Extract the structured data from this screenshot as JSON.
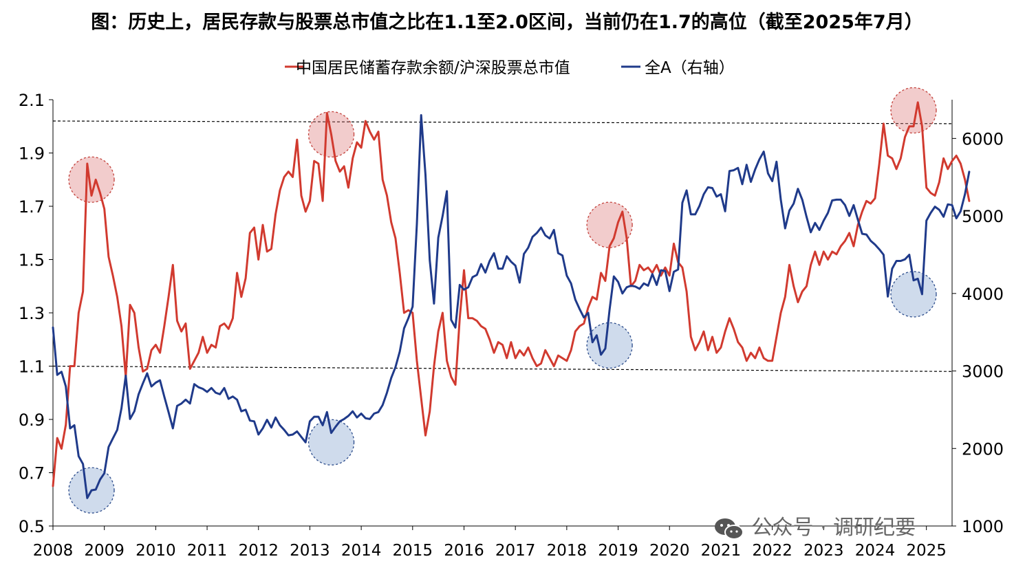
{
  "title": "图：历史上，居民存款与股票总市值之比在1.1至2.0区间，当前仍在1.7的高位（截至2025年7月）",
  "watermark": "公众号 · 调研纪要",
  "chart_data": {
    "type": "line",
    "title": "图：历史上，居民存款与股票总市值之比在1.1至2.0区间，当前仍在1.7的高位（截至2025年7月）",
    "x_start": "2008-01",
    "x_end": "2025-07",
    "frequency": "monthly",
    "x_tick_labels": [
      "2008",
      "2009",
      "2010",
      "2011",
      "2012",
      "2013",
      "2014",
      "2015",
      "2016",
      "2017",
      "2018",
      "2019",
      "2020",
      "2021",
      "2022",
      "2023",
      "2024",
      "2025"
    ],
    "left_axis": {
      "range": [
        0.5,
        2.1
      ],
      "ticks": [
        "0.5",
        "0.7",
        "0.9",
        "1.1",
        "1.3",
        "1.5",
        "1.7",
        "1.9",
        "2.1"
      ]
    },
    "right_axis": {
      "range": [
        1000,
        6500
      ],
      "ticks": [
        "1000",
        "2000",
        "3000",
        "4000",
        "5000",
        "6000"
      ]
    },
    "legend_position": "top-center",
    "reference_lines": [
      {
        "axis": "left",
        "style": "dashed",
        "values": [
          2.02,
          2.01
        ]
      },
      {
        "axis": "left",
        "style": "dashed",
        "values": [
          1.1,
          1.08
        ]
      }
    ],
    "series": [
      {
        "name": "中国居民储蓄存款余额/沪深股票总市值",
        "axis": "left",
        "color": "#d13a2f",
        "values": [
          0.65,
          0.83,
          0.79,
          0.88,
          1.1,
          1.1,
          1.3,
          1.38,
          1.86,
          1.74,
          1.8,
          1.75,
          1.69,
          1.51,
          1.44,
          1.36,
          1.25,
          1.06,
          1.33,
          1.3,
          1.17,
          1.08,
          1.09,
          1.16,
          1.18,
          1.15,
          1.25,
          1.36,
          1.48,
          1.27,
          1.23,
          1.26,
          1.09,
          1.12,
          1.15,
          1.21,
          1.15,
          1.18,
          1.17,
          1.25,
          1.26,
          1.24,
          1.28,
          1.45,
          1.36,
          1.43,
          1.6,
          1.62,
          1.5,
          1.63,
          1.53,
          1.54,
          1.67,
          1.76,
          1.81,
          1.83,
          1.81,
          1.95,
          1.74,
          1.68,
          1.72,
          1.87,
          1.86,
          1.72,
          2.05,
          1.97,
          1.87,
          1.83,
          1.85,
          1.77,
          1.88,
          1.94,
          1.92,
          2.02,
          1.98,
          1.95,
          1.98,
          1.8,
          1.74,
          1.64,
          1.58,
          1.45,
          1.3,
          1.31,
          1.3,
          1.12,
          0.98,
          0.84,
          0.93,
          1.1,
          1.23,
          1.3,
          1.12,
          1.06,
          1.03,
          1.28,
          1.46,
          1.28,
          1.28,
          1.27,
          1.25,
          1.24,
          1.2,
          1.15,
          1.19,
          1.18,
          1.13,
          1.19,
          1.13,
          1.16,
          1.14,
          1.17,
          1.13,
          1.1,
          1.11,
          1.16,
          1.13,
          1.1,
          1.14,
          1.13,
          1.12,
          1.16,
          1.23,
          1.25,
          1.26,
          1.32,
          1.36,
          1.35,
          1.45,
          1.42,
          1.55,
          1.58,
          1.64,
          1.68,
          1.58,
          1.4,
          1.42,
          1.48,
          1.46,
          1.47,
          1.45,
          1.48,
          1.44,
          1.47,
          1.44,
          1.56,
          1.49,
          1.47,
          1.38,
          1.21,
          1.16,
          1.19,
          1.23,
          1.16,
          1.21,
          1.15,
          1.17,
          1.23,
          1.28,
          1.24,
          1.19,
          1.17,
          1.12,
          1.15,
          1.13,
          1.17,
          1.13,
          1.12,
          1.12,
          1.21,
          1.3,
          1.36,
          1.48,
          1.4,
          1.34,
          1.38,
          1.4,
          1.48,
          1.53,
          1.48,
          1.53,
          1.5,
          1.53,
          1.52,
          1.55,
          1.57,
          1.6,
          1.55,
          1.63,
          1.68,
          1.72,
          1.71,
          1.73,
          1.86,
          2.01,
          1.89,
          1.88,
          1.84,
          1.88,
          1.96,
          2.0,
          2.0,
          2.09,
          2.0,
          1.77,
          1.75,
          1.74,
          1.79,
          1.88,
          1.84,
          1.87,
          1.89,
          1.86,
          1.8,
          1.72
        ]
      },
      {
        "name": "全A（右轴）",
        "axis": "right",
        "color": "#1f3a8a",
        "values": [
          3560,
          2950,
          2990,
          2800,
          2260,
          2300,
          1900,
          1800,
          1360,
          1460,
          1470,
          1600,
          1680,
          2020,
          2130,
          2240,
          2520,
          2940,
          2380,
          2480,
          2700,
          2840,
          2970,
          2800,
          2850,
          2880,
          2670,
          2470,
          2260,
          2550,
          2580,
          2630,
          2580,
          2830,
          2790,
          2770,
          2730,
          2780,
          2720,
          2700,
          2780,
          2640,
          2670,
          2630,
          2480,
          2500,
          2360,
          2350,
          2180,
          2260,
          2370,
          2270,
          2400,
          2300,
          2240,
          2170,
          2180,
          2220,
          2150,
          2080,
          2350,
          2410,
          2410,
          2300,
          2470,
          2200,
          2280,
          2350,
          2380,
          2420,
          2480,
          2400,
          2450,
          2390,
          2380,
          2450,
          2470,
          2560,
          2720,
          2910,
          3050,
          3250,
          3550,
          3680,
          3830,
          4900,
          6300,
          5530,
          4430,
          3870,
          4720,
          5000,
          5320,
          3660,
          3560,
          4110,
          4050,
          4080,
          4210,
          4240,
          4380,
          4270,
          4420,
          4520,
          4320,
          4320,
          4480,
          4410,
          4360,
          4140,
          4510,
          4590,
          4730,
          4780,
          4850,
          4750,
          4710,
          4820,
          4520,
          4490,
          4230,
          4130,
          3920,
          3800,
          3690,
          3750,
          3370,
          3460,
          3210,
          3290,
          3790,
          4220,
          4150,
          4000,
          4080,
          4100,
          4090,
          4060,
          4130,
          4100,
          4250,
          4110,
          4300,
          4290,
          4030,
          4280,
          4310,
          5170,
          5330,
          5020,
          5020,
          5130,
          5280,
          5370,
          5360,
          5250,
          5280,
          5060,
          5580,
          5590,
          5620,
          5410,
          5660,
          5440,
          5600,
          5730,
          5830,
          5550,
          5450,
          5700,
          5210,
          4840,
          5070,
          5160,
          5350,
          5210,
          4990,
          4790,
          4910,
          4820,
          4940,
          5040,
          5200,
          5210,
          5210,
          5140,
          5000,
          5140,
          4950,
          4770,
          4760,
          4680,
          4630,
          4570,
          4500,
          3960,
          4320,
          4420,
          4420,
          4440,
          4500,
          4170,
          4190,
          3990,
          4940,
          5040,
          5120,
          5080,
          4990,
          5150,
          5140,
          4970,
          5060,
          5280,
          5570
        ]
      }
    ],
    "annotations": [
      {
        "type": "circle",
        "color": "red",
        "date": "2008-10",
        "value": 1.8,
        "axis": "left"
      },
      {
        "type": "circle",
        "color": "red",
        "date": "2013-06",
        "value": 1.97,
        "axis": "left"
      },
      {
        "type": "circle",
        "color": "red",
        "date": "2018-11",
        "value": 1.63,
        "axis": "left"
      },
      {
        "type": "circle",
        "color": "red",
        "date": "2024-10",
        "value": 2.06,
        "axis": "left"
      },
      {
        "type": "circle",
        "color": "blue",
        "date": "2008-10",
        "value": 1460,
        "axis": "right"
      },
      {
        "type": "circle",
        "color": "blue",
        "date": "2013-06",
        "value": 2080,
        "axis": "right"
      },
      {
        "type": "circle",
        "color": "blue",
        "date": "2018-11",
        "value": 3330,
        "axis": "right"
      },
      {
        "type": "circle",
        "color": "blue",
        "date": "2024-10",
        "value": 3990,
        "axis": "right"
      }
    ]
  }
}
